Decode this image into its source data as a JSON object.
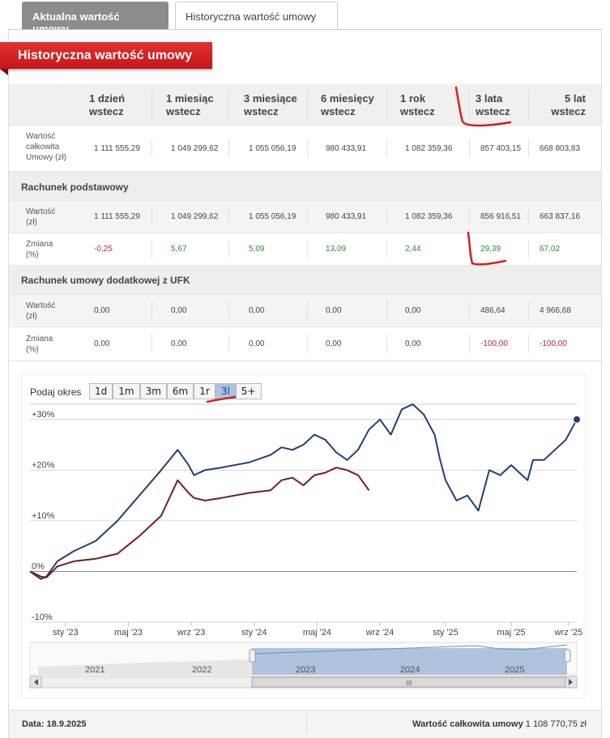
{
  "tabs": [
    {
      "label": "Aktualna wartość umowy"
    },
    {
      "label": "Historyczna wartość umowy"
    }
  ],
  "banner": "Historyczna wartość umowy",
  "table": {
    "headers": [
      {
        "l1": "1 dzień",
        "l2": "wstecz"
      },
      {
        "l1": "1 miesiąc",
        "l2": "wstecz"
      },
      {
        "l1": "3 miesiące",
        "l2": "wstecz"
      },
      {
        "l1": "6 miesięcy",
        "l2": "wstecz"
      },
      {
        "l1": "1 rok",
        "l2": "wstecz"
      },
      {
        "l1": "3 lata",
        "l2": "wstecz"
      },
      {
        "l1": "5 lat",
        "l2": "wstecz"
      }
    ],
    "total": {
      "label_lines": [
        "Wartość",
        "całkowita",
        "Umowy (zł)"
      ],
      "values": [
        "1 111 555,29",
        "1 049 299,62",
        "1 055 056,19",
        "980 433,91",
        "1 082 359,36",
        "857 403,15",
        "668 803,83"
      ]
    },
    "section1": "Rachunek podstawowy",
    "basic_value": {
      "label_lines": [
        "Wartość",
        "(zł)"
      ],
      "values": [
        "1 111 555,29",
        "1 049 299,62",
        "1 055 056,19",
        "980 433,91",
        "1 082 359,36",
        "856 916,51",
        "663 837,16"
      ]
    },
    "basic_change": {
      "label_lines": [
        "Zmiana",
        "(%)"
      ],
      "values": [
        "-0,25",
        "5,67",
        "5,09",
        "13,09",
        "2,44",
        "29,39",
        "67,02"
      ]
    },
    "section2": "Rachunek umowy dodatkowej z UFK",
    "ufk_value": {
      "label_lines": [
        "Wartość",
        "(zł)"
      ],
      "values": [
        "0,00",
        "0,00",
        "0,00",
        "0,00",
        "0,00",
        "486,64",
        "4 966,68"
      ]
    },
    "ufk_change": {
      "label_lines": [
        "Zmiana",
        "(%)"
      ],
      "values": [
        "0,00",
        "0,00",
        "0,00",
        "0,00",
        "0,00",
        "-100,00",
        "-100,00"
      ]
    }
  },
  "chart_controls": {
    "label": "Podaj okres",
    "buttons": [
      "1d",
      "1m",
      "3m",
      "6m",
      "1r",
      "3l",
      "5+"
    ],
    "selected": "3l"
  },
  "chart_data": {
    "type": "line",
    "y_ticks": [
      "+30%",
      "+20%",
      "+10%",
      "0%",
      "-10%"
    ],
    "x_ticks": [
      "sty '23",
      "maj '23",
      "wrz '23",
      "sty '24",
      "maj '24",
      "wrz '24",
      "sty '25",
      "maj '25",
      "wrz '25"
    ],
    "ylim": [
      -10,
      33
    ],
    "series": [
      {
        "color": "#1f3f73",
        "x": [
          0,
          0.02,
          0.03,
          0.05,
          0.08,
          0.12,
          0.16,
          0.2,
          0.24,
          0.27,
          0.29,
          0.3,
          0.32,
          0.35,
          0.4,
          0.44,
          0.46,
          0.48,
          0.5,
          0.52,
          0.54,
          0.56,
          0.58,
          0.6,
          0.62,
          0.64,
          0.66,
          0.68,
          0.7,
          0.72,
          0.74,
          0.75,
          0.76,
          0.78,
          0.8,
          0.82,
          0.84,
          0.86,
          0.88,
          0.9,
          0.91,
          0.92,
          0.94,
          0.96,
          0.98,
          1.0
        ],
        "y": [
          0,
          -1.5,
          -1,
          2,
          4,
          6,
          10,
          15,
          20,
          24,
          21,
          19,
          20,
          20.5,
          21.5,
          23,
          24.5,
          24,
          25,
          27,
          26,
          23.5,
          22,
          24,
          28,
          30,
          27,
          32,
          33,
          31,
          27,
          22,
          18,
          14,
          15,
          12,
          20,
          19,
          21,
          19,
          18,
          22,
          22,
          24,
          26,
          30
        ]
      },
      {
        "color": "#7a1a1e",
        "x": [
          0,
          0.02,
          0.03,
          0.05,
          0.08,
          0.12,
          0.16,
          0.2,
          0.24,
          0.27,
          0.29,
          0.3,
          0.32,
          0.35,
          0.4,
          0.44,
          0.46,
          0.48,
          0.5,
          0.52,
          0.54,
          0.56,
          0.58,
          0.6,
          0.62
        ],
        "y": [
          0,
          -1,
          -1.2,
          1,
          2,
          2.5,
          3.5,
          7,
          11,
          18,
          15.5,
          14.5,
          14,
          14.5,
          15.5,
          16,
          18,
          18.5,
          17,
          19,
          19.5,
          20.5,
          20,
          19,
          16
        ]
      }
    ],
    "navigator_years": [
      "2021",
      "2022",
      "2023",
      "2024",
      "2025"
    ],
    "navigator_scroll": "III"
  },
  "footer": {
    "date": "Data: 18.9.2025",
    "total_label": "Wartość całkowita umowy",
    "total_value": "1 108 770,75 zł"
  }
}
